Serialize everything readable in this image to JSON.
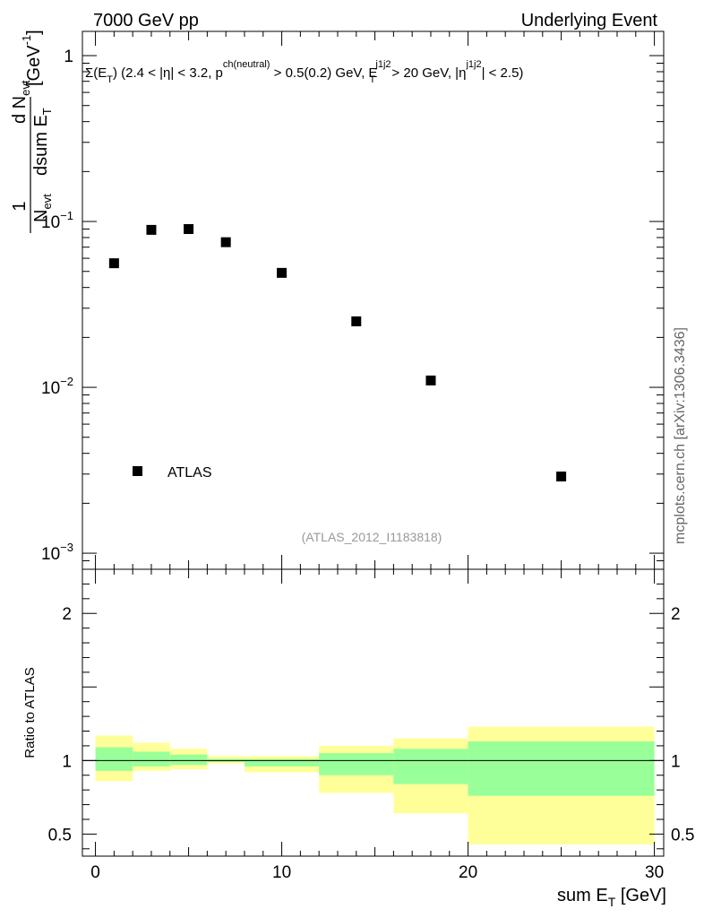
{
  "header": {
    "left_label": "7000 GeV pp",
    "right_label": "Underlying Event"
  },
  "side_label": "mcplots.cern.ch [arXiv:1306.3436]",
  "analysis_tag": "(ATLAS_2012_I1183818)",
  "chart_data": [
    {
      "type": "scatter",
      "panel": "main",
      "title": "Σ(E_T) (2.4 < |η| < 3.2, p^ch(neutral) > 0.5(0.2) GeV, E_T^j1j2 > 20 GeV, |η^j1j2| < 2.5)",
      "title_parts": {
        "a": "Σ(E",
        "b": "T",
        "c": ") (2.4 < |η| < 3.2, p",
        "d": "ch(neutral)",
        "e": " > 0.5(0.2) GeV, E",
        "f": "j1j2",
        "g": "T",
        "h": " > 20 GeV, |η",
        "i": "j1j2",
        "j": "| < 2.5)"
      },
      "ylabel": "1/N_evt dN_evt/dsum E_T [GeV^-1]",
      "ylabel_parts": {
        "one": "1",
        "N": "N",
        "evt": "evt",
        "d": "d N",
        "dsum": "dsum E",
        "T": "T",
        "unit": "[GeV",
        "exp": "-1",
        "close": "]"
      },
      "yscale": "log",
      "ylim": [
        0.0008,
        1.4
      ],
      "xlim": [
        -0.7,
        30.5
      ],
      "y_ticks": [
        {
          "value": 1,
          "base": "1",
          "exp": ""
        },
        {
          "value": 0.1,
          "base": "10",
          "exp": "−1"
        },
        {
          "value": 0.01,
          "base": "10",
          "exp": "−2"
        },
        {
          "value": 0.001,
          "base": "10",
          "exp": "−3"
        }
      ],
      "series": [
        {
          "name": "ATLAS",
          "marker": "square",
          "x": [
            1,
            3,
            5,
            7,
            10,
            14,
            18,
            25
          ],
          "y": [
            0.056,
            0.089,
            0.09,
            0.075,
            0.049,
            0.025,
            0.011,
            0.0029
          ]
        }
      ],
      "legend": {
        "position": "bottom-left",
        "entries": [
          "ATLAS"
        ]
      }
    },
    {
      "type": "area",
      "panel": "ratio",
      "ylabel": "Ratio to ATLAS",
      "xlabel": "sum E_T [GeV]",
      "xlabel_parts": {
        "main": "sum E",
        "sub": "T",
        "unit": " [GeV]"
      },
      "xlim": [
        -0.7,
        30.5
      ],
      "ylim": [
        0.35,
        2.3
      ],
      "x_ticks": [
        0,
        10,
        20,
        30
      ],
      "y_ticks": [
        0.5,
        1,
        2
      ],
      "reference_line": 1,
      "bins": [
        {
          "x0": 0,
          "x1": 2,
          "inner": [
            0.93,
            1.09
          ],
          "outer": [
            0.86,
            1.17
          ]
        },
        {
          "x0": 2,
          "x1": 4,
          "inner": [
            0.96,
            1.06
          ],
          "outer": [
            0.93,
            1.12
          ]
        },
        {
          "x0": 4,
          "x1": 6,
          "inner": [
            0.97,
            1.04
          ],
          "outer": [
            0.94,
            1.08
          ]
        },
        {
          "x0": 6,
          "x1": 8,
          "inner": [
            0.99,
            1.01
          ],
          "outer": [
            0.98,
            1.03
          ]
        },
        {
          "x0": 8,
          "x1": 12,
          "inner": [
            0.96,
            1.01
          ],
          "outer": [
            0.92,
            1.03
          ]
        },
        {
          "x0": 12,
          "x1": 16,
          "inner": [
            0.9,
            1.05
          ],
          "outer": [
            0.78,
            1.1
          ]
        },
        {
          "x0": 16,
          "x1": 20,
          "inner": [
            0.84,
            1.08
          ],
          "outer": [
            0.64,
            1.15
          ]
        },
        {
          "x0": 20,
          "x1": 30,
          "inner": [
            0.76,
            1.13
          ],
          "outer": [
            0.43,
            1.23
          ]
        }
      ],
      "colors": {
        "inner": "#99ff99",
        "outer": "#ffff99"
      }
    }
  ],
  "colors": {
    "inner": "#99ff99",
    "outer": "#ffff99",
    "axis": "#000000",
    "tag": "#999999",
    "side": "#666666"
  }
}
